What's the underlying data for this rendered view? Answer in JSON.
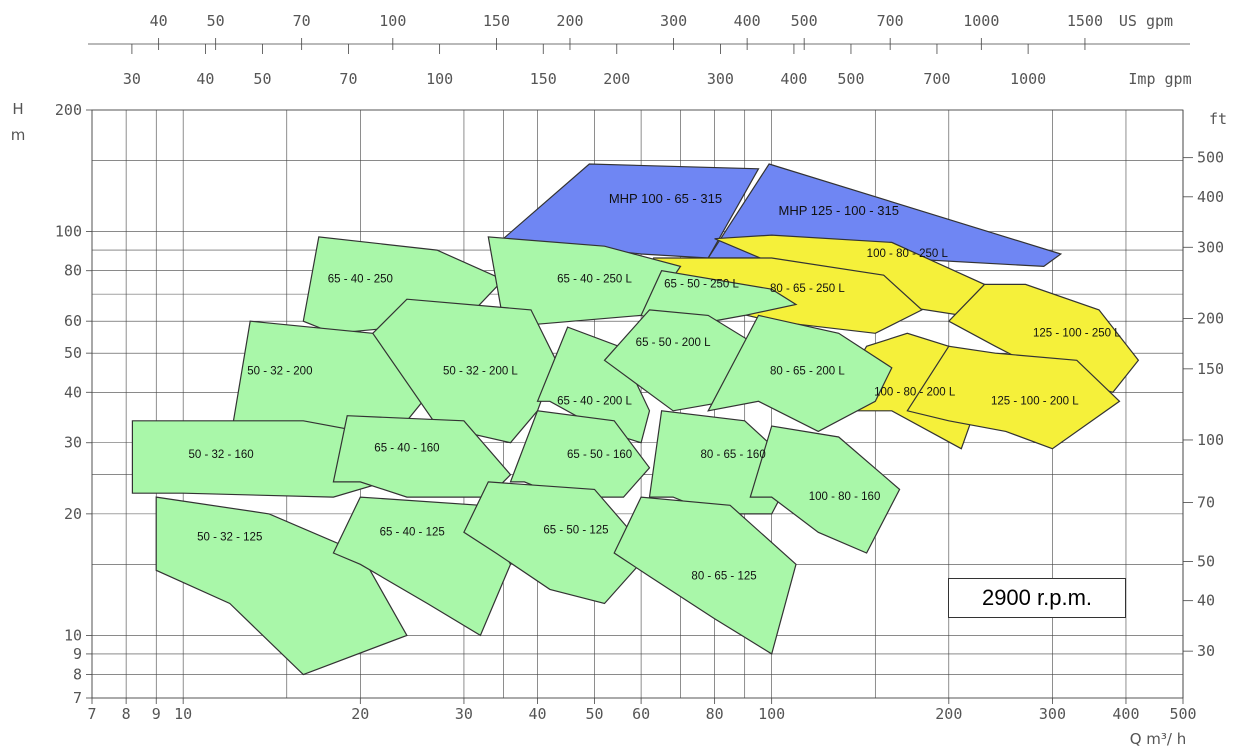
{
  "chart_data": {
    "type": "area",
    "title": "",
    "speed_label": "2900 r.p.m.",
    "x_axis": {
      "label": "Q m³/ h",
      "scale": "log",
      "range": [
        7,
        500
      ],
      "ticks": [
        7,
        8,
        9,
        10,
        20,
        30,
        40,
        50,
        60,
        80,
        100,
        200,
        300,
        400,
        500
      ],
      "tick_labels": [
        "7",
        "8",
        "9",
        "10",
        "20",
        "30",
        "40",
        "50",
        "60",
        "80",
        "100",
        "200",
        "300",
        "400",
        "500"
      ]
    },
    "y_axis": {
      "label_top": "H",
      "label_unit": "m",
      "scale": "log",
      "range": [
        7,
        200
      ],
      "ticks": [
        7,
        8,
        9,
        10,
        20,
        30,
        40,
        50,
        60,
        80,
        100,
        200
      ],
      "tick_labels": [
        "7",
        "8",
        "9",
        "10",
        "20",
        "30",
        "40",
        "50",
        "60",
        "80",
        "100",
        "200"
      ]
    },
    "secondary_axes": {
      "us_gpm": {
        "label": "US gpm",
        "ticks": [
          40,
          50,
          70,
          100,
          150,
          200,
          300,
          400,
          500,
          700,
          1000,
          1500
        ],
        "tick_labels": [
          "40",
          "50",
          "70",
          "100",
          "150",
          "200",
          "300",
          "400",
          "500",
          "700",
          "1000",
          "1500"
        ]
      },
      "imp_gpm": {
        "label": "Imp gpm",
        "ticks": [
          30,
          40,
          50,
          70,
          100,
          150,
          200,
          300,
          400,
          500,
          700,
          1000
        ],
        "tick_labels": [
          "30",
          "40",
          "50",
          "70",
          "100",
          "150",
          "200",
          "300",
          "400",
          "500",
          "700",
          "1000"
        ]
      },
      "ft": {
        "label": "ft",
        "ticks": [
          30,
          40,
          50,
          70,
          100,
          150,
          200,
          300,
          400,
          500
        ],
        "tick_labels": [
          "30",
          "40",
          "50",
          "70",
          "100",
          "150",
          "200",
          "300",
          "400",
          "500"
        ]
      }
    },
    "grid": true,
    "colors": {
      "green": "#a9f7a9",
      "yellow": "#f5f03a",
      "blue": "#6f86f3",
      "outline": "#333333"
    },
    "zones": [
      {
        "name": "MHP 100 - 65 - 315",
        "color": "blue",
        "q": [
          35,
          49,
          95,
          78,
          60
        ],
        "h": [
          96,
          147,
          143,
          86,
          88
        ],
        "label_at": [
          66,
          120
        ],
        "big": true
      },
      {
        "name": "MHP 125 - 100 - 315",
        "color": "blue",
        "q": [
          78,
          99,
          310,
          290,
          160
        ],
        "h": [
          86,
          147,
          88,
          82,
          86
        ],
        "label_at": [
          130,
          112
        ],
        "big": true
      },
      {
        "name": "100 - 80 - 250 L",
        "color": "yellow",
        "q": [
          80,
          100,
          160,
          230,
          210,
          140
        ],
        "h": [
          96,
          98,
          94,
          74,
          62,
          68
        ],
        "label_at": [
          170,
          88
        ]
      },
      {
        "name": "80 - 65 - 250 L",
        "color": "yellow",
        "q": [
          59,
          63,
          100,
          155,
          180,
          150,
          100
        ],
        "h": [
          72,
          86,
          86,
          78,
          64,
          56,
          60
        ],
        "label_at": [
          115,
          72
        ]
      },
      {
        "name": "125 - 100 - 250 L",
        "color": "yellow",
        "q": [
          200,
          230,
          270,
          360,
          420,
          380,
          300,
          240
        ],
        "h": [
          60,
          74,
          74,
          64,
          48,
          40,
          44,
          52
        ],
        "label_at": [
          330,
          56
        ]
      },
      {
        "name": "100 - 80 - 200 L",
        "color": "yellow",
        "q": [
          125,
          145,
          170,
          200,
          230,
          210,
          160,
          135
        ],
        "h": [
          36,
          52,
          56,
          52,
          42,
          29,
          36,
          36
        ],
        "label_at": [
          175,
          40
        ]
      },
      {
        "name": "125 - 100 - 200 L",
        "color": "yellow",
        "q": [
          170,
          200,
          240,
          330,
          390,
          300,
          250,
          200
        ],
        "h": [
          36,
          52,
          50,
          48,
          38,
          29,
          32,
          34
        ],
        "label_at": [
          280,
          38
        ]
      },
      {
        "name": "65 - 40 - 250",
        "color": "green",
        "q": [
          16,
          17,
          27,
          35,
          30,
          18
        ],
        "h": [
          60,
          97,
          90,
          76,
          60,
          56
        ],
        "label_at": [
          20,
          76
        ]
      },
      {
        "name": "65 - 40 - 250 L",
        "color": "green",
        "q": [
          35,
          33,
          52,
          70,
          65,
          60,
          35
        ],
        "h": [
          60,
          97,
          92,
          82,
          70,
          62,
          58
        ],
        "label_at": [
          50,
          76
        ]
      },
      {
        "name": "65 - 50 - 250 L",
        "color": "green",
        "q": [
          60,
          65,
          100,
          110,
          90,
          70
        ],
        "h": [
          62,
          80,
          72,
          66,
          62,
          58
        ],
        "label_at": [
          76,
          74
        ]
      },
      {
        "name": "50 - 32 - 200",
        "color": "green",
        "q": [
          12,
          13,
          21,
          27,
          24,
          14
        ],
        "h": [
          30,
          60,
          56,
          42,
          34,
          30
        ],
        "label_at": [
          14.6,
          45
        ]
      },
      {
        "name": "50 - 32 - 200 L",
        "color": "green",
        "q": [
          21,
          24,
          39,
          43,
          40,
          36,
          27
        ],
        "h": [
          56,
          68,
          64,
          48,
          36,
          30,
          33
        ],
        "label_at": [
          32,
          45
        ]
      },
      {
        "name": "65 - 40 - 200 L",
        "color": "green",
        "q": [
          40,
          45,
          55,
          62,
          60,
          52,
          42
        ],
        "h": [
          38,
          58,
          52,
          36,
          30,
          32,
          38
        ],
        "label_at": [
          50,
          38
        ]
      },
      {
        "name": "65 - 50 - 200 L",
        "color": "green",
        "q": [
          52,
          62,
          78,
          95,
          84,
          68
        ],
        "h": [
          48,
          64,
          62,
          52,
          38,
          36
        ],
        "label_at": [
          68,
          53
        ]
      },
      {
        "name": "80 - 65 - 200 L",
        "color": "green",
        "q": [
          78,
          95,
          130,
          160,
          150,
          120,
          95
        ],
        "h": [
          36,
          62,
          56,
          46,
          38,
          32,
          38
        ],
        "label_at": [
          115,
          45
        ]
      },
      {
        "name": "50 - 32 - 160",
        "color": "green",
        "q": [
          8.2,
          8.2,
          16,
          20,
          22,
          18,
          10
        ],
        "h": [
          22.5,
          34,
          34,
          32,
          24,
          22,
          22.5
        ],
        "label_at": [
          11.6,
          28
        ]
      },
      {
        "name": "65 - 40 - 160",
        "color": "green",
        "q": [
          18,
          19,
          30,
          36,
          33,
          24,
          20
        ],
        "h": [
          24,
          35,
          34,
          25,
          22,
          22,
          24
        ],
        "label_at": [
          24,
          29
        ]
      },
      {
        "name": "65 - 50 - 160",
        "color": "green",
        "q": [
          36,
          40,
          54,
          62,
          56,
          44,
          38
        ],
        "h": [
          24,
          36,
          34,
          26,
          22,
          22,
          24
        ],
        "label_at": [
          51,
          28
        ]
      },
      {
        "name": "80 - 65 - 160",
        "color": "green",
        "q": [
          62,
          65,
          90,
          110,
          100,
          80,
          68
        ],
        "h": [
          22,
          36,
          34,
          26,
          20,
          20,
          22
        ],
        "label_at": [
          86,
          28
        ]
      },
      {
        "name": "100 - 80 - 160",
        "color": "green",
        "q": [
          92,
          100,
          130,
          165,
          145,
          120,
          100
        ],
        "h": [
          22,
          33,
          31,
          23,
          16,
          18,
          22
        ],
        "label_at": [
          133,
          22
        ]
      },
      {
        "name": "50 - 32 - 125",
        "color": "green",
        "q": [
          9,
          9,
          14,
          20,
          24,
          16,
          12
        ],
        "h": [
          14.5,
          22,
          20,
          16,
          10,
          8,
          12
        ],
        "label_at": [
          12,
          17.5
        ]
      },
      {
        "name": "65 - 40 - 125",
        "color": "green",
        "q": [
          18,
          20,
          32,
          36,
          32,
          26,
          20
        ],
        "h": [
          16,
          22,
          21,
          15,
          10,
          12,
          15
        ],
        "label_at": [
          24.5,
          18
        ]
      },
      {
        "name": "65 - 50 - 125",
        "color": "green",
        "q": [
          30,
          33,
          50,
          62,
          52,
          42,
          34
        ],
        "h": [
          18,
          24,
          23,
          16,
          12,
          13,
          16
        ],
        "label_at": [
          46.5,
          18.2
        ]
      },
      {
        "name": "80 - 65 - 125",
        "color": "green",
        "q": [
          54,
          60,
          85,
          110,
          100,
          80,
          62
        ],
        "h": [
          16,
          22,
          21,
          15,
          9,
          11,
          14
        ],
        "label_at": [
          83,
          14
        ]
      }
    ]
  }
}
